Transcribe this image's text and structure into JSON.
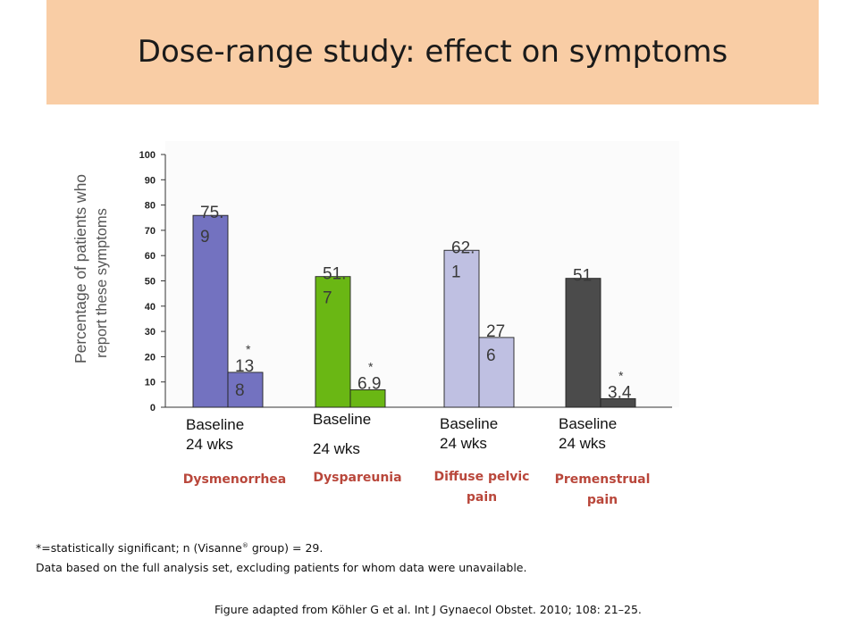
{
  "slide": {
    "title": "Dose-range study: effect on symptoms"
  },
  "chart_data": {
    "type": "bar",
    "categories": [
      "Dysmenorrhea",
      "Dyspareunia",
      "Diffuse pelvic pain",
      "Premenstrual pain"
    ],
    "series": [
      {
        "name": "Baseline",
        "values": [
          75.9,
          51.7,
          62.1,
          51
        ]
      },
      {
        "name": "24 wks",
        "values": [
          13.8,
          6.9,
          27.6,
          3.4
        ]
      }
    ],
    "bar_labels": [
      {
        "baseline": [
          "75.",
          "9"
        ],
        "wk24": [
          "13",
          "8"
        ],
        "wk24_star": "*"
      },
      {
        "baseline": [
          "51.",
          "7"
        ],
        "wk24": [
          "6.9"
        ],
        "wk24_star": "*"
      },
      {
        "baseline": [
          "62.",
          "1"
        ],
        "wk24": [
          "27",
          "6"
        ],
        "wk24_star": ""
      },
      {
        "baseline": [
          "51"
        ],
        "wk24": [
          "3.4"
        ],
        "wk24_star": "*"
      }
    ],
    "colors": [
      {
        "baseline": "#7372c0",
        "wk24": "#7372c0"
      },
      {
        "baseline": "#6ab714",
        "wk24": "#6ab714"
      },
      {
        "baseline": "#bfc0e2",
        "wk24": "#bfc0e2"
      },
      {
        "baseline": "#4b4b4b",
        "wk24": "#4b4b4b"
      }
    ],
    "ylabel_lines": [
      "Percentage of patients who",
      "report these symptoms"
    ],
    "ylim": [
      0,
      100
    ],
    "yticks": [
      0,
      10,
      20,
      30,
      40,
      50,
      60,
      70,
      80,
      90,
      100
    ],
    "grid": false,
    "under_labels": [
      {
        "baseline": "Baseline",
        "wk24": "24 wks"
      },
      {
        "baseline": "Baseline",
        "wk24": "24 wks"
      },
      {
        "baseline": "Baseline",
        "wk24": "24 wks"
      },
      {
        "baseline": "Baseline",
        "wk24": "24 wks"
      }
    ],
    "category_labels": [
      [
        "Dysmenorrhea"
      ],
      [
        "Dyspareunia"
      ],
      [
        "Diffuse pelvic",
        "pain"
      ],
      [
        "Premenstrual",
        "pain"
      ]
    ]
  },
  "footnotes": {
    "line1_pre": "*=statistically significant; n (Visanne",
    "line1_sup": "®",
    "line1_post": " group) = 29.",
    "line2": "Data based on the full analysis set, excluding patients for whom data were unavailable.",
    "source": "Figure adapted from Köhler G et al. Int J Gynaecol Obstet. 2010; 108: 21–25."
  }
}
